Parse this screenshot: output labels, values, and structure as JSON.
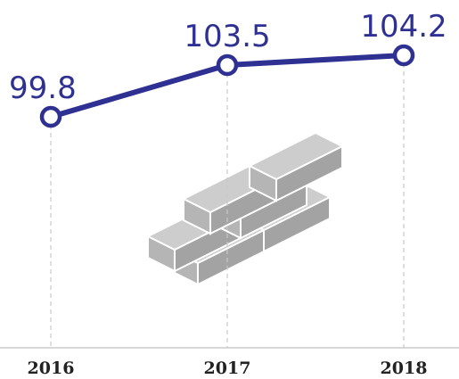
{
  "chart_data": {
    "type": "line",
    "categories": [
      "2016",
      "2017",
      "2018"
    ],
    "values": [
      99.8,
      103.5,
      104.2
    ],
    "color": "#2e3192"
  }
}
